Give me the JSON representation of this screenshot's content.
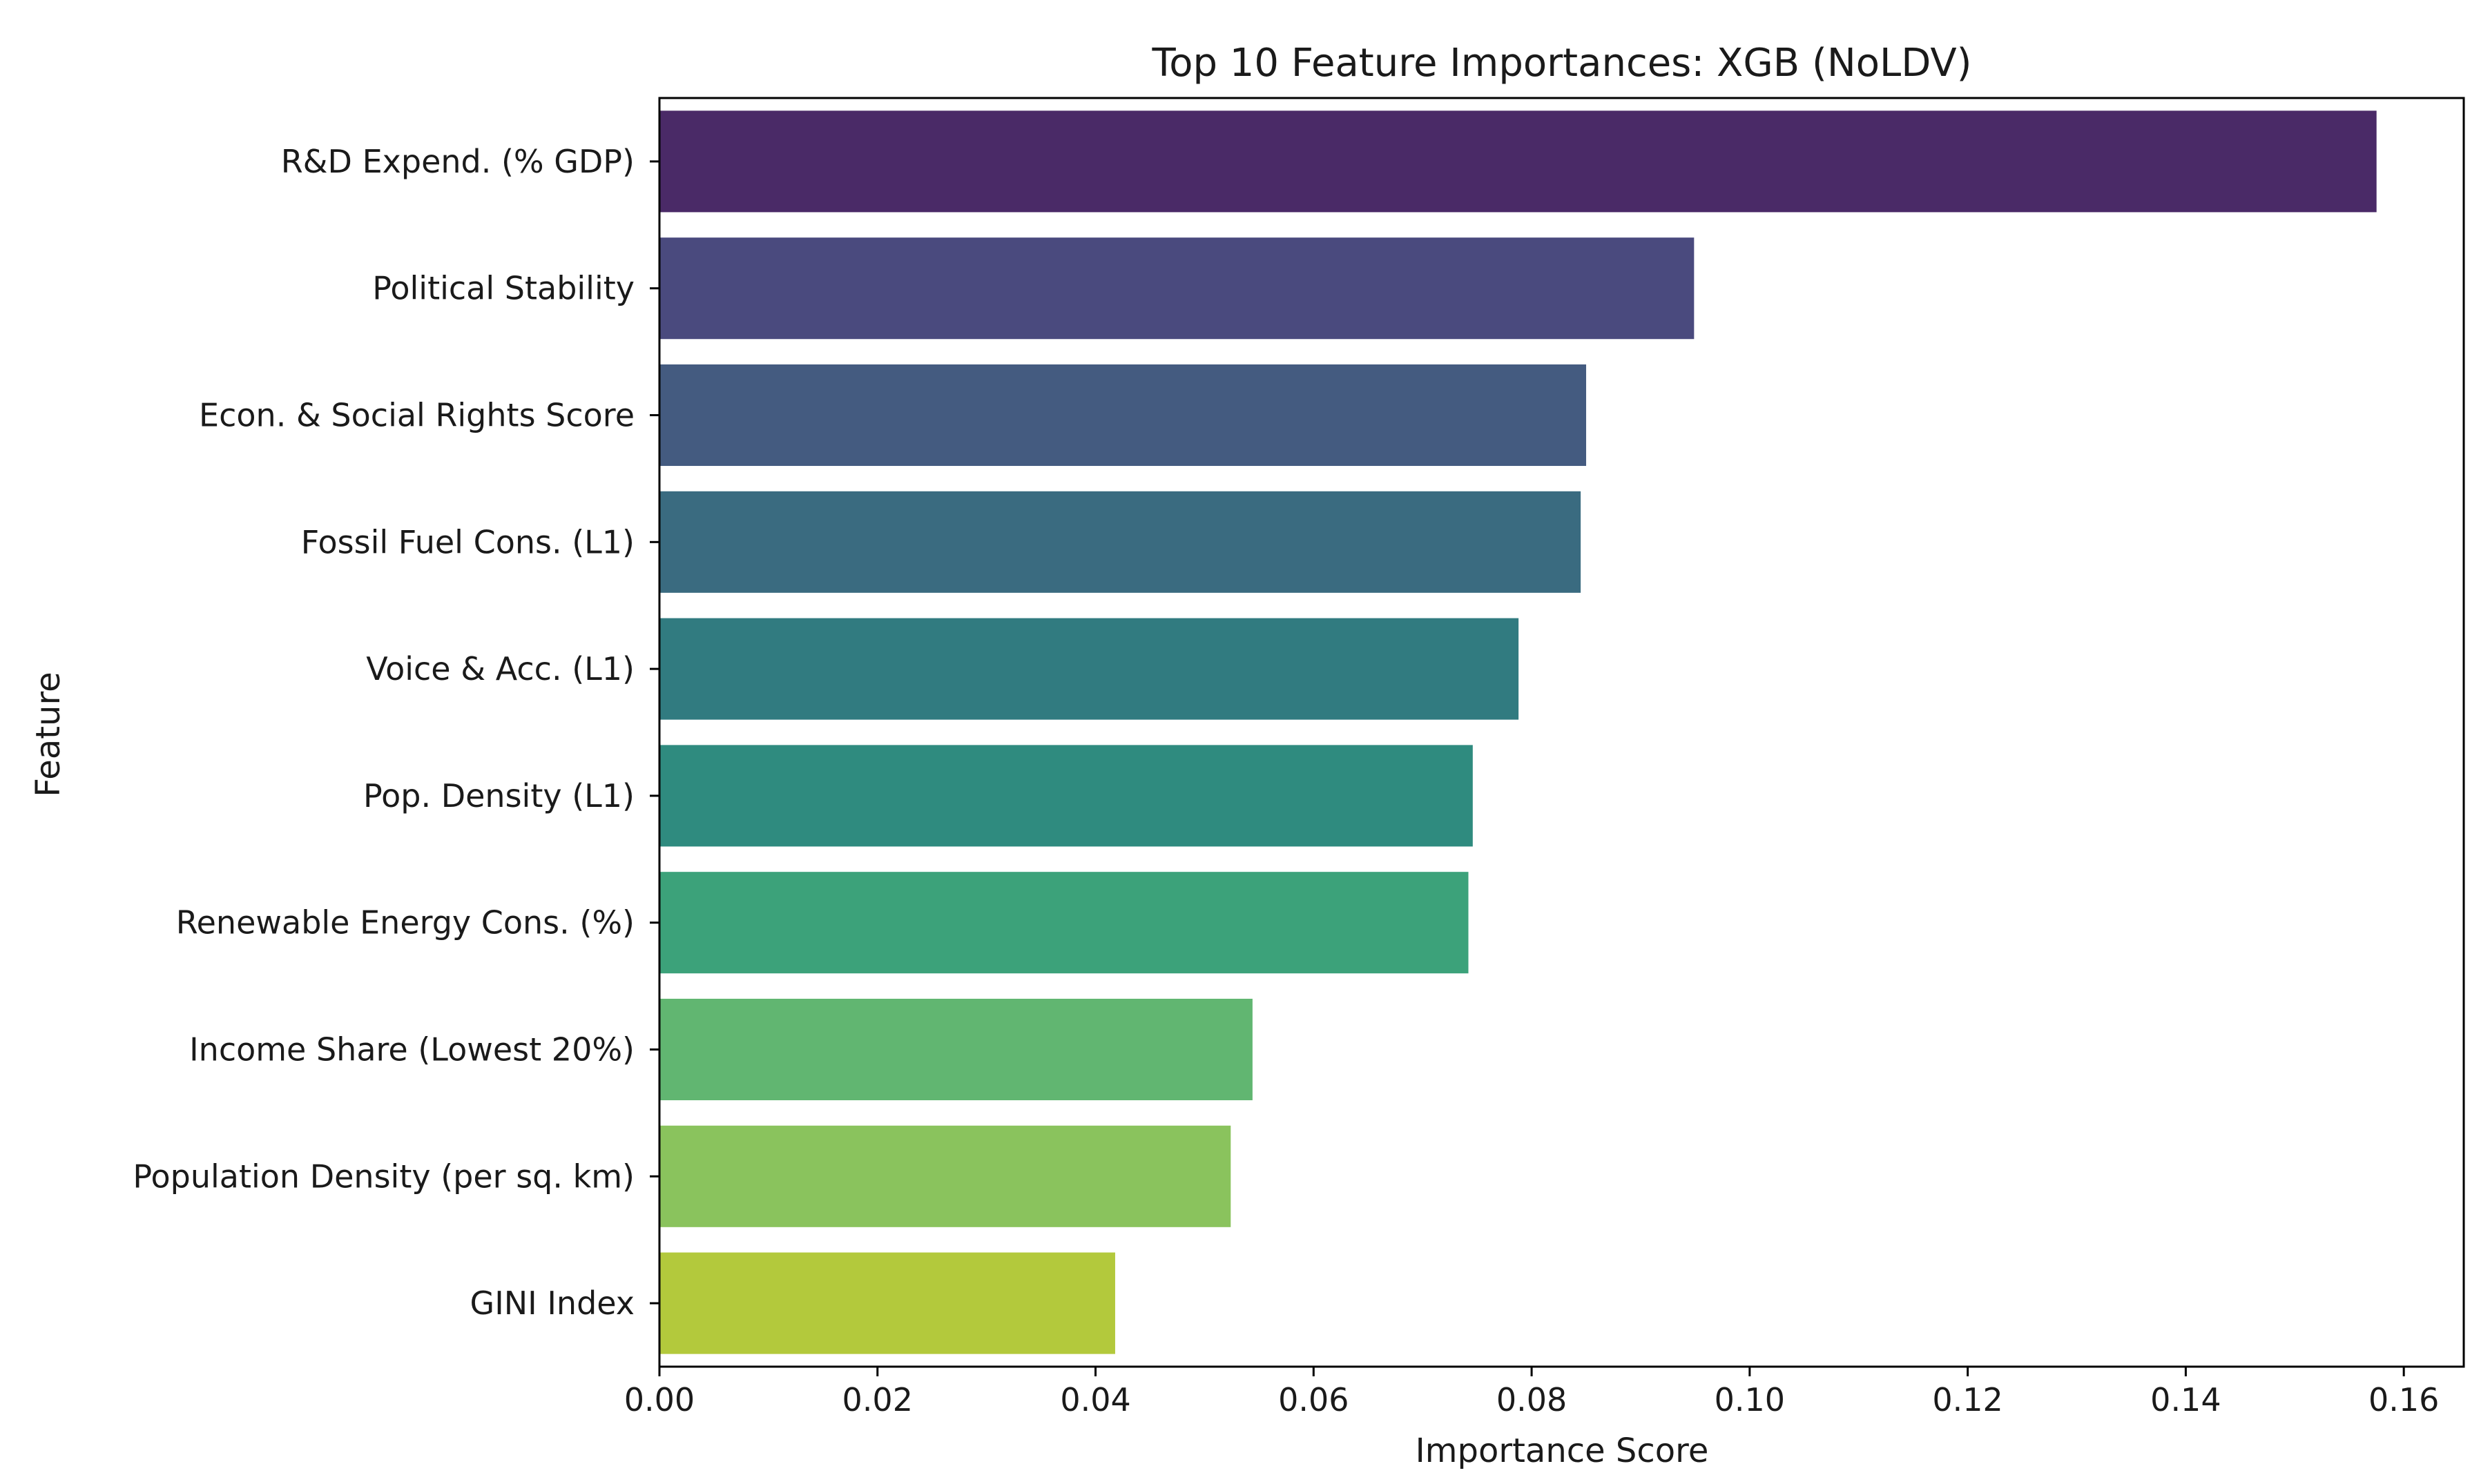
{
  "chart_data": {
    "type": "bar",
    "orientation": "horizontal",
    "title": "Top 10 Feature Importances: XGB (NoLDV)",
    "xlabel": "Importance Score",
    "ylabel": "Feature",
    "xlim": [
      0,
      0.1655
    ],
    "xticks": [
      0.0,
      0.02,
      0.04,
      0.06,
      0.08,
      0.1,
      0.12,
      0.14,
      0.16
    ],
    "xtick_labels": [
      "0.00",
      "0.02",
      "0.04",
      "0.06",
      "0.08",
      "0.10",
      "0.12",
      "0.14",
      "0.16"
    ],
    "grid": false,
    "legend": "none",
    "categories": [
      "R&D Expend. (% GDP)",
      "Political Stability",
      "Econ. & Social Rights Score",
      "Fossil Fuel Cons. (L1)",
      "Voice & Acc. (L1)",
      "Pop. Density (L1)",
      "Renewable Energy Cons. (%)",
      "Income Share (Lowest 20%)",
      "Population Density (per sq. km)",
      "GINI Index"
    ],
    "values": [
      0.1575,
      0.0949,
      0.085,
      0.0845,
      0.0788,
      0.0746,
      0.0742,
      0.0544,
      0.0524,
      0.0418
    ],
    "colors": [
      "#4a2a67",
      "#4a4a7e",
      "#445b80",
      "#3a6b80",
      "#317b80",
      "#2f8b7f",
      "#3ca27a",
      "#61b671",
      "#8ac35d",
      "#b3c93c"
    ]
  }
}
